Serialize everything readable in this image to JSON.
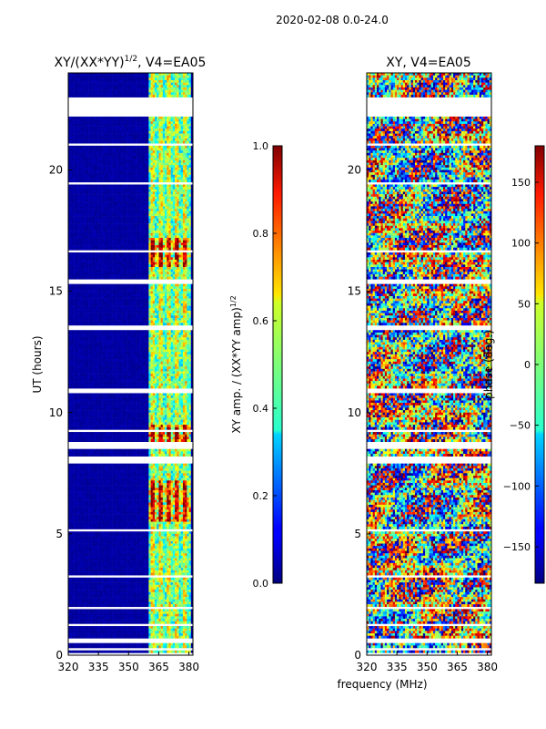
{
  "suptitle": "2020-02-08 0.0-24.0",
  "shared_xlabel": "frequency (MHz)",
  "chart_data": [
    {
      "type": "heatmap",
      "panel": "left",
      "title_main": "XY/(XX*YY)",
      "title_sup": "1/2",
      "title_rest": ", V4=EA05",
      "xlabel": "frequency (MHz)",
      "ylabel": "UT (hours)",
      "xlim": [
        320,
        382
      ],
      "ylim": [
        0,
        24
      ],
      "xticks": [
        320,
        335,
        350,
        365,
        380
      ],
      "yticks": [
        0,
        5,
        10,
        15,
        20
      ],
      "active_band_mhz": [
        360,
        381
      ],
      "blank_rows_hours": [
        [
          22.2,
          23.0
        ],
        [
          15.3,
          15.5
        ],
        [
          13.4,
          13.6
        ],
        [
          10.8,
          11.0
        ],
        [
          8.5,
          8.8
        ],
        [
          7.9,
          8.05
        ],
        [
          1.9,
          2.05
        ],
        [
          0.5,
          0.65
        ]
      ],
      "colorbar": {
        "label_main": "XY amp. / (XX*YY amp)",
        "label_sup": "1/2",
        "range": [
          0.0,
          1.0
        ],
        "ticks": [
          "0.0",
          "0.2",
          "0.4",
          "0.6",
          "0.8",
          "1.0"
        ]
      }
    },
    {
      "type": "heatmap",
      "panel": "right",
      "title": "XY, V4=EA05",
      "xlabel": "frequency (MHz)",
      "xlim": [
        320,
        382
      ],
      "ylim": [
        0,
        24
      ],
      "xticks": [
        320,
        335,
        350,
        365,
        380
      ],
      "yticks": [
        0,
        5,
        10,
        15,
        20
      ],
      "colorbar": {
        "label": "phase (deg.)",
        "range": [
          -180,
          180
        ],
        "ticks": [
          "150",
          "100",
          "50",
          "0",
          "−50",
          "−100",
          "−150"
        ],
        "tick_values": [
          150,
          100,
          50,
          0,
          -50,
          -100,
          -150
        ]
      }
    }
  ]
}
